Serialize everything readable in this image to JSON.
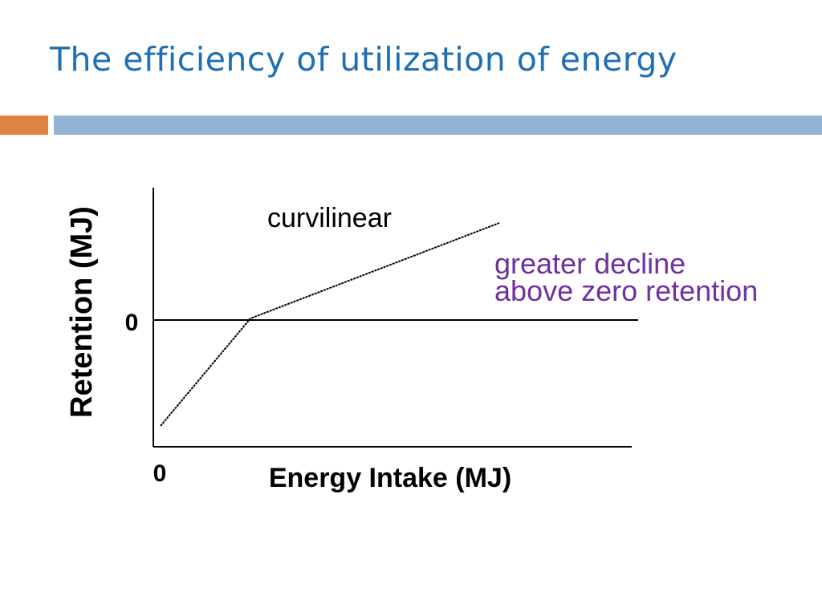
{
  "title": "The efficiency of utilization of energy",
  "colors": {
    "title": "#1f6fb2",
    "accent_orange": "#de8344",
    "accent_blue": "#95b3d7",
    "annotation": "#7030a0"
  },
  "diagram": {
    "y_axis_label": "Retention (MJ)",
    "x_axis_label": "Energy Intake (MJ)",
    "y_zero_label": "0",
    "x_zero_label": "0",
    "curve_label": "curvilinear",
    "annotation_line1": "greater decline",
    "annotation_line2": "above zero retention"
  }
}
